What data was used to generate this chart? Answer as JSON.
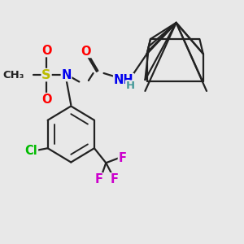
{
  "bg_color": "#e8e8e8",
  "bond_color": "#222222",
  "atom_colors": {
    "O": "#ff0000",
    "N": "#0000ee",
    "S": "#bbbb00",
    "Cl": "#00bb00",
    "F": "#cc00cc",
    "H": "#449999",
    "C": "#222222"
  },
  "line_width": 1.6,
  "font_size": 10.5
}
